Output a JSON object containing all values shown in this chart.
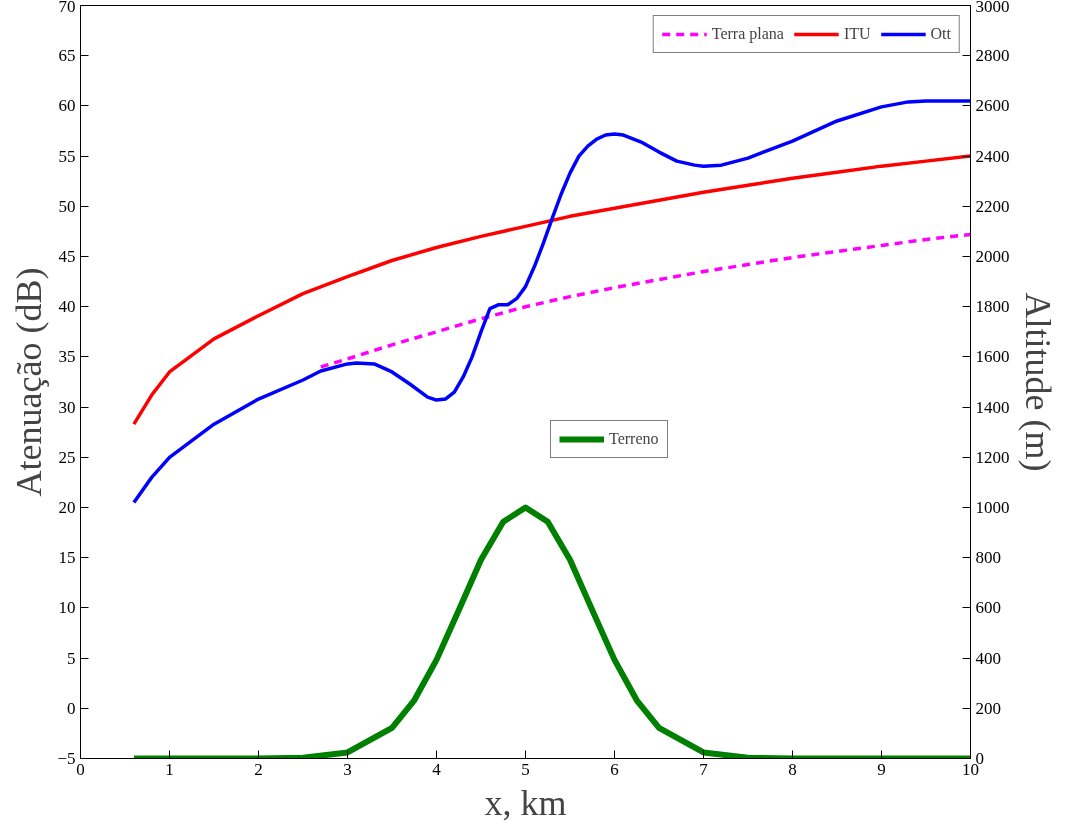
{
  "chart_data": {
    "type": "line",
    "xlabel": "x, km",
    "ylabel": "Atenuação (dB)",
    "y2label": "Altitude (m)",
    "xlim": [
      0,
      10
    ],
    "xticks": [
      0,
      1,
      2,
      3,
      4,
      5,
      6,
      7,
      8,
      9,
      10
    ],
    "ylim": [
      -5,
      70
    ],
    "yticks": [
      -5,
      0,
      5,
      10,
      15,
      20,
      25,
      30,
      35,
      40,
      45,
      50,
      55,
      60,
      65,
      70
    ],
    "y2lim": [
      0,
      3000
    ],
    "y2ticks": [
      0,
      200,
      400,
      600,
      800,
      1000,
      1200,
      1400,
      1600,
      1800,
      2000,
      2200,
      2400,
      2600,
      2800,
      3000
    ],
    "grid": false,
    "legend": "top right",
    "series": [
      {
        "name": "Terra plana",
        "color": "#ff00ff",
        "line_style": "dashed",
        "x": [
          2.7,
          3,
          3.5,
          4,
          4.5,
          5,
          5.5,
          6,
          6.5,
          7,
          7.5,
          8,
          8.5,
          9,
          9.5,
          10
        ],
        "values": [
          34.0,
          34.8,
          36.2,
          37.5,
          38.8,
          40.0,
          41.0,
          41.9,
          42.7,
          43.5,
          44.2,
          44.9,
          45.5,
          46.1,
          46.7,
          47.2
        ]
      },
      {
        "name": "ITU",
        "color": "#ff0000",
        "line_style": "solid",
        "x": [
          0.6,
          0.8,
          1,
          1.5,
          2,
          2.5,
          3,
          3.5,
          4,
          4.5,
          5,
          5.5,
          6,
          6.5,
          7,
          7.5,
          8,
          8.5,
          9,
          9.5,
          10
        ],
        "values": [
          28.3,
          31.2,
          33.5,
          36.8,
          39.1,
          41.3,
          43.0,
          44.6,
          45.9,
          47.0,
          48.0,
          49.0,
          49.8,
          50.6,
          51.4,
          52.1,
          52.8,
          53.4,
          54.0,
          54.5,
          55.0
        ]
      },
      {
        "name": "Ott",
        "color": "#0000ff",
        "line_style": "solid",
        "x": [
          0.6,
          0.8,
          1,
          1.5,
          2,
          2.5,
          2.7,
          3,
          3.1,
          3.3,
          3.5,
          3.7,
          3.9,
          4.0,
          4.1,
          4.2,
          4.3,
          4.4,
          4.5,
          4.6,
          4.7,
          4.8,
          4.9,
          5.0,
          5.1,
          5.2,
          5.3,
          5.4,
          5.5,
          5.6,
          5.7,
          5.8,
          5.9,
          6.0,
          6.1,
          6.3,
          6.5,
          6.7,
          6.9,
          7.0,
          7.2,
          7.5,
          8,
          8.5,
          9,
          9.3,
          9.5,
          10
        ],
        "values": [
          20.5,
          23.0,
          25.0,
          28.3,
          30.8,
          32.7,
          33.6,
          34.3,
          34.4,
          34.3,
          33.5,
          32.3,
          31.0,
          30.7,
          30.8,
          31.5,
          33.0,
          35.0,
          37.5,
          39.8,
          40.2,
          40.2,
          40.8,
          42.0,
          44.0,
          46.3,
          48.8,
          51.2,
          53.3,
          55.0,
          56.0,
          56.7,
          57.1,
          57.2,
          57.1,
          56.4,
          55.4,
          54.5,
          54.1,
          54.0,
          54.1,
          54.8,
          56.5,
          58.5,
          59.9,
          60.4,
          60.5,
          60.5
        ]
      },
      {
        "name": "Terreno",
        "color": "#008000",
        "line_style": "solid",
        "axis": "y2",
        "x": [
          0.6,
          2,
          2.5,
          3,
          3.5,
          3.75,
          4,
          4.25,
          4.5,
          4.75,
          5,
          5.25,
          5.5,
          5.75,
          6,
          6.25,
          6.5,
          7,
          7.5,
          8,
          10
        ],
        "values": [
          0,
          0,
          3,
          24,
          122,
          232,
          393,
          591,
          792,
          943,
          1000,
          943,
          792,
          591,
          393,
          232,
          122,
          24,
          3,
          0,
          0
        ]
      }
    ]
  }
}
